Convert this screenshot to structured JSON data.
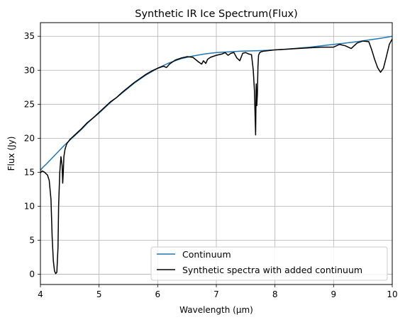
{
  "chart_data": {
    "type": "line",
    "title": "Synthetic IR Ice Spectrum(Flux)",
    "xlabel": "Wavelength (µm)",
    "ylabel": "Flux (Jy)",
    "xlim": [
      4,
      10
    ],
    "ylim": [
      -1.5,
      37
    ],
    "xticks": [
      4,
      5,
      6,
      7,
      8,
      9,
      10
    ],
    "yticks": [
      0,
      5,
      10,
      15,
      20,
      25,
      30,
      35
    ],
    "grid": true,
    "legend_position": "lower-right",
    "series": [
      {
        "name": "Continuum",
        "color": "#1f77b4",
        "x": [
          4.0,
          4.05,
          4.1,
          4.2,
          4.3,
          4.4,
          4.5,
          4.6,
          4.7,
          4.8,
          4.9,
          5.0,
          5.1,
          5.2,
          5.3,
          5.4,
          5.5,
          5.6,
          5.7,
          5.8,
          5.9,
          6.0,
          6.2,
          6.4,
          6.6,
          6.8,
          7.0,
          7.2,
          7.4,
          7.6,
          7.8,
          8.0,
          8.2,
          8.4,
          8.6,
          8.8,
          9.0,
          9.2,
          9.4,
          9.6,
          9.8,
          10.0
        ],
        "y": [
          15.3,
          15.8,
          16.2,
          17.1,
          18.0,
          18.9,
          19.7,
          20.5,
          21.3,
          22.2,
          23.0,
          23.7,
          24.5,
          25.3,
          26.0,
          26.7,
          27.4,
          28.1,
          28.7,
          29.3,
          29.8,
          30.3,
          31.1,
          31.7,
          32.1,
          32.4,
          32.6,
          32.7,
          32.8,
          32.85,
          32.9,
          33.0,
          33.1,
          33.25,
          33.4,
          33.6,
          33.8,
          34.0,
          34.2,
          34.45,
          34.7,
          35.0
        ]
      },
      {
        "name": "Synthetic spectra with added continuum",
        "color": "#000000",
        "x": [
          4.0,
          4.03,
          4.07,
          4.12,
          4.15,
          4.18,
          4.2,
          4.22,
          4.24,
          4.26,
          4.28,
          4.3,
          4.31,
          4.33,
          4.35,
          4.37,
          4.38,
          4.39,
          4.4,
          4.42,
          4.45,
          4.5,
          4.6,
          4.7,
          4.8,
          4.9,
          5.0,
          5.1,
          5.2,
          5.3,
          5.4,
          5.5,
          5.6,
          5.7,
          5.8,
          5.9,
          6.0,
          6.1,
          6.15,
          6.2,
          6.25,
          6.3,
          6.4,
          6.5,
          6.6,
          6.7,
          6.75,
          6.78,
          6.82,
          6.85,
          6.9,
          7.0,
          7.1,
          7.15,
          7.2,
          7.25,
          7.3,
          7.35,
          7.4,
          7.45,
          7.5,
          7.55,
          7.6,
          7.63,
          7.65,
          7.67,
          7.68,
          7.69,
          7.7,
          7.71,
          7.72,
          7.74,
          7.76,
          7.8,
          8.0,
          8.2,
          8.4,
          8.6,
          8.8,
          9.0,
          9.1,
          9.2,
          9.3,
          9.4,
          9.5,
          9.6,
          9.65,
          9.7,
          9.75,
          9.8,
          9.85,
          9.9,
          9.95,
          10.0
        ],
        "y": [
          14.9,
          15.2,
          15.0,
          14.6,
          13.8,
          11.0,
          5.5,
          2.0,
          0.5,
          0.1,
          0.3,
          4.0,
          10.0,
          15.0,
          17.3,
          16.0,
          13.4,
          15.0,
          17.3,
          18.4,
          19.2,
          19.8,
          20.6,
          21.4,
          22.3,
          23.0,
          23.8,
          24.6,
          25.4,
          26.0,
          26.8,
          27.5,
          28.2,
          28.8,
          29.4,
          29.9,
          30.3,
          30.6,
          30.4,
          30.9,
          31.2,
          31.5,
          31.8,
          32.0,
          31.9,
          31.2,
          30.9,
          31.4,
          31.0,
          31.6,
          31.9,
          32.2,
          32.4,
          32.6,
          32.2,
          32.5,
          32.6,
          31.8,
          31.4,
          32.5,
          32.6,
          32.4,
          32.3,
          30.0,
          27.0,
          20.5,
          28.0,
          24.8,
          26.5,
          30.5,
          32.2,
          32.6,
          32.7,
          32.8,
          33.0,
          33.1,
          33.2,
          33.3,
          33.4,
          33.4,
          33.8,
          33.6,
          33.2,
          34.0,
          34.3,
          34.2,
          33.0,
          31.6,
          30.4,
          29.7,
          30.3,
          32.0,
          33.8,
          34.6
        ]
      }
    ]
  }
}
